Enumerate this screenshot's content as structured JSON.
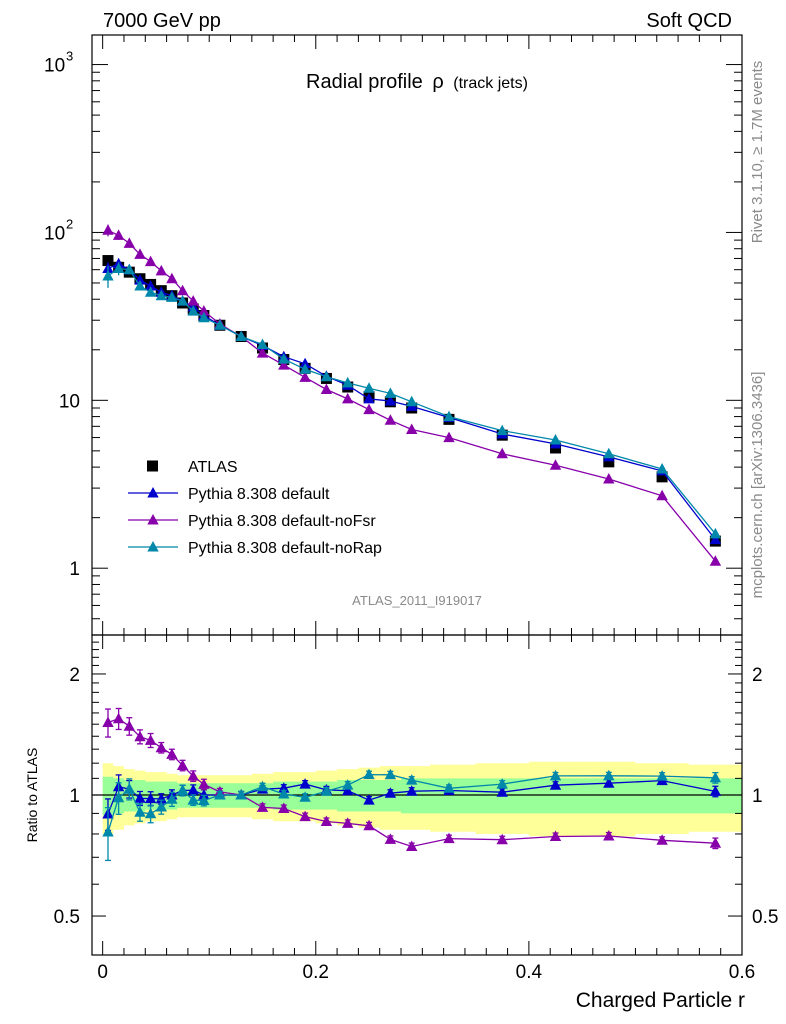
{
  "header": {
    "left": "7000 GeV pp",
    "right": "Soft QCD"
  },
  "side_text": {
    "rivet": "Rivet 3.1.10, ≥ 1.7M events",
    "mcplots": "mcplots.cern.ch [arXiv:1306.3436]"
  },
  "chart_data": {
    "type": "scatter",
    "title_main": "Radial profile",
    "title_symbol": "ρ",
    "title_suffix": "(track jets)",
    "watermark": "ATLAS_2011_I919017",
    "xlabel": "Charged Particle r",
    "ylabel_ratio": "Ratio to ATLAS",
    "xlim": [
      -0.01,
      0.6
    ],
    "ylim_main": [
      0.4,
      1500
    ],
    "ylog_main": true,
    "ylim_ratio": [
      0.4,
      2.5
    ],
    "ylog_ratio": true,
    "x_ticks": [
      "0",
      "0.2",
      "0.4",
      "0.6"
    ],
    "y_ticks_main": [
      "1",
      "10"
    ],
    "y_ticks_ratio": [
      "0.5",
      "1",
      "2"
    ],
    "legend_position": "lower-left",
    "x": [
      0.005,
      0.015,
      0.025,
      0.035,
      0.045,
      0.055,
      0.065,
      0.075,
      0.085,
      0.095,
      0.11,
      0.13,
      0.15,
      0.17,
      0.19,
      0.21,
      0.23,
      0.25,
      0.27,
      0.29,
      0.325,
      0.375,
      0.425,
      0.475,
      0.525,
      0.575
    ],
    "reference": {
      "name": "ATLAS",
      "values": [
        68,
        62,
        58,
        53,
        49,
        45,
        42,
        38,
        35,
        32,
        28,
        24,
        20.5,
        17.5,
        15.5,
        13.5,
        12,
        10.5,
        9.8,
        9,
        7.7,
        6.2,
        5.2,
        4.3,
        3.5,
        1.45
      ],
      "band_inner": [
        0.11,
        0.1,
        0.09,
        0.09,
        0.08,
        0.08,
        0.08,
        0.07,
        0.07,
        0.07,
        0.07,
        0.07,
        0.07,
        0.08,
        0.08,
        0.08,
        0.09,
        0.09,
        0.09,
        0.1,
        0.1,
        0.1,
        0.1,
        0.1,
        0.1,
        0.1
      ],
      "band_outer": [
        0.2,
        0.18,
        0.16,
        0.15,
        0.14,
        0.14,
        0.13,
        0.12,
        0.12,
        0.12,
        0.12,
        0.12,
        0.13,
        0.14,
        0.14,
        0.15,
        0.16,
        0.17,
        0.18,
        0.18,
        0.19,
        0.2,
        0.21,
        0.21,
        0.2,
        0.19
      ],
      "band_inner_color": "#99ff99",
      "band_outer_color": "#ffff99"
    },
    "series": [
      {
        "name": "Pythia 8.308 default",
        "color": "#0000cc",
        "values": [
          61,
          65,
          60,
          52,
          48,
          44,
          42,
          39,
          36,
          32,
          28,
          24,
          21.2,
          18.2,
          16.5,
          13.9,
          12.3,
          10.2,
          9.9,
          9.2,
          7.9,
          6.3,
          5.5,
          4.6,
          3.8,
          1.48
        ],
        "errors": [
          0.09,
          0.07,
          0.05,
          0.04,
          0.04,
          0.03,
          0.03,
          0.03,
          0.03,
          0.03,
          0.02,
          0.02,
          0.02,
          0.02,
          0.02,
          0.02,
          0.02,
          0.02,
          0.02,
          0.02,
          0.02,
          0.02,
          0.02,
          0.02,
          0.02,
          0.03
        ]
      },
      {
        "name": "Pythia 8.308 default-noFsr",
        "color": "#8800aa",
        "values": [
          103,
          96,
          86,
          74,
          67,
          59,
          53,
          45,
          39,
          34,
          28.5,
          24,
          19.1,
          16.2,
          13.7,
          11.6,
          10.2,
          8.8,
          7.6,
          6.7,
          6,
          4.8,
          4.1,
          3.4,
          2.7,
          1.1
        ],
        "errors": [
          0.08,
          0.06,
          0.05,
          0.04,
          0.04,
          0.03,
          0.03,
          0.03,
          0.03,
          0.03,
          0.02,
          0.02,
          0.02,
          0.02,
          0.02,
          0.02,
          0.02,
          0.02,
          0.02,
          0.02,
          0.02,
          0.02,
          0.02,
          0.02,
          0.02,
          0.03
        ]
      },
      {
        "name": "Pythia 8.308 default-noRap",
        "color": "#0088aa",
        "values": [
          55,
          61,
          60,
          48,
          44,
          42,
          41,
          39,
          34,
          31,
          28,
          24,
          21.5,
          17.6,
          15.3,
          13.8,
          12.7,
          11.8,
          11,
          9.8,
          8,
          6.6,
          5.8,
          4.8,
          3.9,
          1.6
        ],
        "errors": [
          0.15,
          0.09,
          0.06,
          0.05,
          0.05,
          0.04,
          0.04,
          0.03,
          0.03,
          0.03,
          0.02,
          0.02,
          0.02,
          0.02,
          0.02,
          0.02,
          0.02,
          0.02,
          0.02,
          0.02,
          0.02,
          0.02,
          0.02,
          0.02,
          0.02,
          0.03
        ]
      }
    ]
  }
}
